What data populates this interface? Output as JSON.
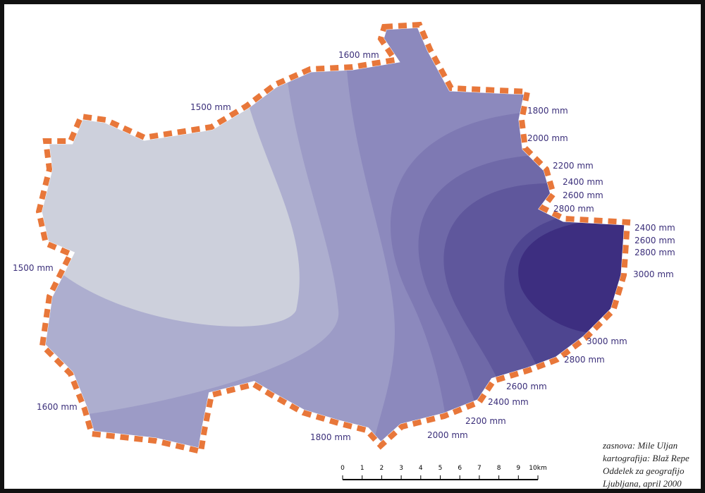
{
  "contour_labels": [
    "1600 mm",
    "1500 mm",
    "1800 mm",
    "2000 mm",
    "2200 mm",
    "2400 mm",
    "2600 mm",
    "2800 mm",
    "2400 mm",
    "2600 mm",
    "2800 mm",
    "3000 mm",
    "1500 mm",
    "3000 mm",
    "2800 mm",
    "2600 mm",
    "2400 mm",
    "2200 mm",
    "2000 mm",
    "1800 mm",
    "1600 mm"
  ],
  "scale": {
    "ticks": [
      0,
      1,
      2,
      3,
      4,
      5,
      6,
      7,
      8,
      9,
      {
        "value": 10,
        "label": "10km"
      }
    ]
  },
  "credits": [
    "zasnova: Mile Uljan",
    "kartografija: Blaž Repe",
    "Oddelek za geografijo",
    "Ljubljana, april 2000"
  ]
}
